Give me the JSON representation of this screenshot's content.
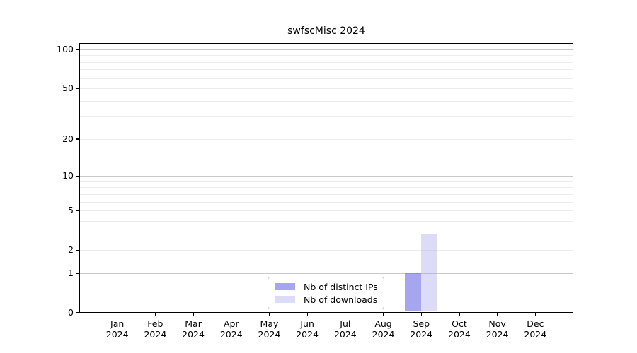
{
  "chart_data": {
    "type": "bar",
    "title": "swfscMisc 2024",
    "categories": [
      "Jan 2024",
      "Feb 2024",
      "Mar 2024",
      "Apr 2024",
      "May 2024",
      "Jun 2024",
      "Jul 2024",
      "Aug 2024",
      "Sep 2024",
      "Oct 2024",
      "Nov 2024",
      "Dec 2024"
    ],
    "series": [
      {
        "name": "Nb of distinct IPs",
        "color": "#a5a5f0",
        "fill": "rgba(110,110,230,0.62)",
        "values": [
          0,
          0,
          0,
          0,
          0,
          0,
          0,
          0,
          1,
          0,
          0,
          0
        ]
      },
      {
        "name": "Nb of downloads",
        "color": "#dcdcf9",
        "fill": "rgba(170,170,240,0.41)",
        "values": [
          0,
          0,
          0,
          0,
          0,
          0,
          0,
          0,
          3,
          0,
          0,
          0
        ]
      }
    ],
    "xlabel": "",
    "ylabel": "",
    "ylim": [
      0,
      100
    ],
    "y_scale": "log1p",
    "y_tick_values": [
      0,
      1,
      2,
      5,
      10,
      20,
      50,
      100
    ],
    "y_tick_labels": [
      "0",
      "1",
      "2",
      "5",
      "10",
      "20",
      "50",
      "100"
    ],
    "gridlines": {
      "major_values": [
        1,
        10,
        100
      ],
      "minor_values": [
        2,
        3,
        4,
        5,
        6,
        7,
        8,
        9,
        20,
        30,
        40,
        50,
        60,
        70,
        80,
        90
      ],
      "major_color": "#c8c8c8",
      "minor_color": "#ececec"
    },
    "legend": {
      "position": "bottom-center-inside",
      "items": [
        "Nb of distinct IPs",
        "Nb of downloads"
      ]
    },
    "colors": {
      "background": "#ffffff",
      "axis": "#000000",
      "text": "#000000"
    }
  }
}
